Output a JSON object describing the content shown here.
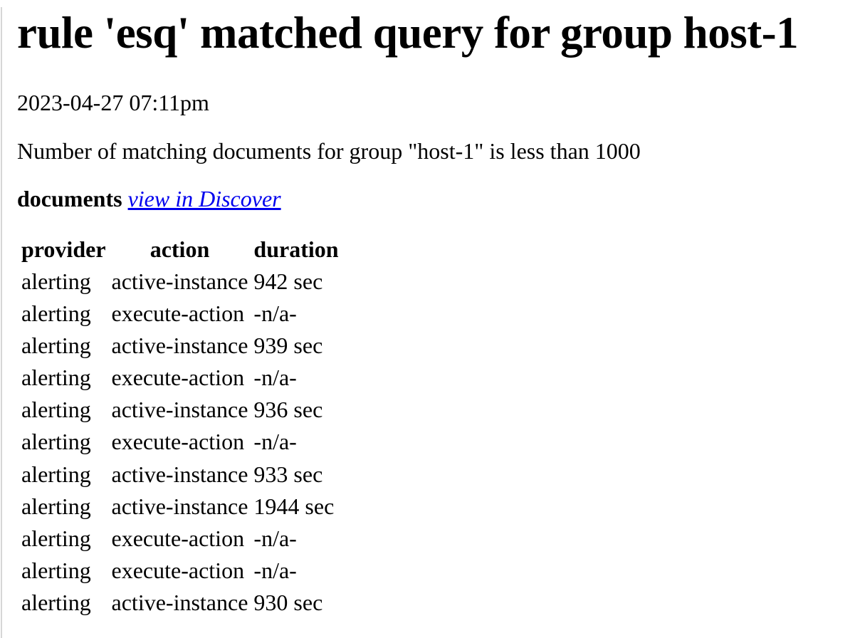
{
  "page": {
    "title": "rule 'esq' matched query for group host-1",
    "timestamp": "2023-04-27 07:11pm",
    "message": "Number of matching documents for group \"host-1\" is less than 1000",
    "documents_label": "documents",
    "link_label": "view in Discover",
    "link_color": "#0000EE",
    "left_edge_color": "#d6d6d6"
  },
  "table": {
    "columns": [
      "provider",
      "action",
      "duration"
    ],
    "rows": [
      [
        "alerting",
        "active-instance",
        "942 sec"
      ],
      [
        "alerting",
        "execute-action",
        "-n/a-"
      ],
      [
        "alerting",
        "active-instance",
        "939 sec"
      ],
      [
        "alerting",
        "execute-action",
        "-n/a-"
      ],
      [
        "alerting",
        "active-instance",
        "936 sec"
      ],
      [
        "alerting",
        "execute-action",
        "-n/a-"
      ],
      [
        "alerting",
        "active-instance",
        "933 sec"
      ],
      [
        "alerting",
        "active-instance",
        "1944 sec"
      ],
      [
        "alerting",
        "execute-action",
        "-n/a-"
      ],
      [
        "alerting",
        "execute-action",
        "-n/a-"
      ],
      [
        "alerting",
        "active-instance",
        "930 sec"
      ]
    ]
  }
}
